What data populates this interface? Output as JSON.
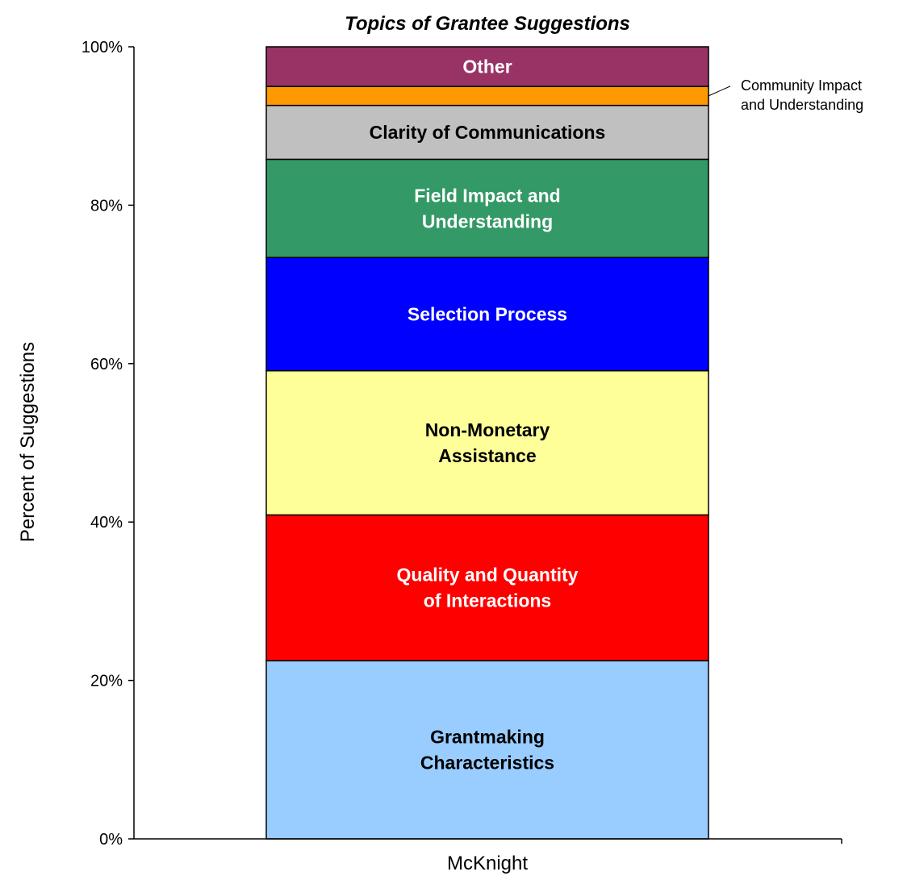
{
  "chart_data": {
    "type": "bar",
    "stacked": true,
    "title": "Topics of Grantee Suggestions",
    "ylabel": "Percent of Suggestions",
    "xlabel": "",
    "categories": [
      "McKnight"
    ],
    "ylim": [
      0,
      100
    ],
    "yticks": [
      "0%",
      "20%",
      "40%",
      "60%",
      "80%",
      "100%"
    ],
    "grid": false,
    "series": [
      {
        "name": "Grantmaking Characteristics",
        "values": [
          22.5
        ],
        "color": "#99ccff",
        "label_lines": [
          "Grantmaking",
          "Characteristics"
        ],
        "label_color": "#000000"
      },
      {
        "name": "Quality and Quantity of Interactions",
        "values": [
          18.4
        ],
        "color": "#ff0000",
        "label_lines": [
          "Quality and Quantity",
          "of Interactions"
        ],
        "label_color": "#ffffff"
      },
      {
        "name": "Non-Monetary Assistance",
        "values": [
          18.2
        ],
        "color": "#ffff99",
        "label_lines": [
          "Non-Monetary",
          "Assistance"
        ],
        "label_color": "#000000"
      },
      {
        "name": "Selection Process",
        "values": [
          14.3
        ],
        "color": "#0000ff",
        "label_lines": [
          "Selection Process"
        ],
        "label_color": "#ffffff"
      },
      {
        "name": "Field Impact and Understanding",
        "values": [
          12.4
        ],
        "color": "#339966",
        "label_lines": [
          "Field Impact and",
          "Understanding"
        ],
        "label_color": "#ffffff"
      },
      {
        "name": "Clarity of Communications",
        "values": [
          6.8
        ],
        "color": "#c0c0c0",
        "label_lines": [
          "Clarity of Communications"
        ],
        "label_color": "#000000"
      },
      {
        "name": "Community Impact and Understanding",
        "values": [
          2.4
        ],
        "color": "#ff9900",
        "label_lines": [],
        "label_color": "#000000"
      },
      {
        "name": "Other",
        "values": [
          5.0
        ],
        "color": "#993366",
        "label_lines": [
          "Other"
        ],
        "label_color": "#ffffff"
      }
    ],
    "callout": {
      "series": "Community Impact and Understanding",
      "lines": [
        "Community Impact",
        "and Understanding"
      ]
    }
  }
}
